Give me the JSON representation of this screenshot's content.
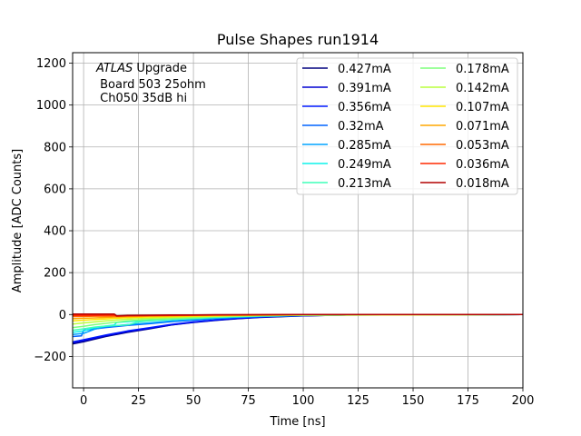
{
  "chart_data": {
    "type": "line",
    "title": "Pulse Shapes run1914",
    "xlabel": "Time [ns]",
    "ylabel": "Amplitude [ADC Counts]",
    "xlim": [
      -5,
      200
    ],
    "ylim": [
      -350,
      1250
    ],
    "xticks": [
      0,
      25,
      50,
      75,
      100,
      125,
      150,
      175,
      200
    ],
    "yticks": [
      -200,
      0,
      200,
      400,
      600,
      800,
      1000,
      1200
    ],
    "xtick_labels": [
      "0",
      "25",
      "50",
      "75",
      "100",
      "125",
      "150",
      "175",
      "200"
    ],
    "ytick_labels": [
      "−200",
      "0",
      "200",
      "400",
      "600",
      "800",
      "1000",
      "1200"
    ],
    "grid": true,
    "legend_location": "upper right",
    "legend_columns": 2,
    "annotation": {
      "atlas": "ATLAS",
      "upgrade": " Upgrade",
      "line2": " Board 503 25ohm",
      "line3": " Ch050 35dB hi"
    },
    "series": [
      {
        "name": "0.427mA",
        "color": "#00007f",
        "x": [
          -5,
          0,
          10,
          20,
          30,
          40,
          50,
          60,
          70,
          80,
          90,
          100,
          110,
          120,
          200
        ],
        "values": [
          -140,
          -130,
          -105,
          -85,
          -68,
          -50,
          -38,
          -28,
          -20,
          -14,
          -10,
          -6,
          -4,
          -2,
          0
        ]
      },
      {
        "name": "0.391mA",
        "color": "#0000d2",
        "x": [
          -5,
          0,
          10,
          20,
          30,
          40,
          50,
          60,
          70,
          80,
          90,
          100,
          110,
          120,
          200
        ],
        "values": [
          -136,
          -126,
          -102,
          -82,
          -66,
          -49,
          -37,
          -27,
          -19,
          -13,
          -9,
          -6,
          -4,
          -2,
          0
        ]
      },
      {
        "name": "0.356mA",
        "color": "#0018ff",
        "x": [
          -5,
          0,
          10,
          20,
          30,
          40,
          50,
          60,
          70,
          80,
          90,
          100,
          110,
          120,
          200
        ],
        "values": [
          -130,
          -120,
          -98,
          -78,
          -63,
          -47,
          -35,
          -26,
          -18,
          -12,
          -8,
          -5,
          -3,
          -2,
          0
        ]
      },
      {
        "name": "0.32mA",
        "color": "#0064ff",
        "x": [
          -5,
          -1,
          0,
          10,
          20,
          30,
          40,
          50,
          60,
          70,
          80,
          100,
          120,
          200
        ],
        "values": [
          -105,
          -102,
          -75,
          -62,
          -52,
          -44,
          -34,
          -27,
          -20,
          -14,
          -10,
          -5,
          -2,
          0
        ]
      },
      {
        "name": "0.285mA",
        "color": "#00a4ff",
        "x": [
          -5,
          0,
          5,
          10,
          20,
          30,
          40,
          50,
          60,
          70,
          80,
          100,
          120,
          200
        ],
        "values": [
          -95,
          -90,
          -70,
          -58,
          -48,
          -40,
          -31,
          -24,
          -18,
          -13,
          -9,
          -4,
          -2,
          0
        ]
      },
      {
        "name": "0.249mA",
        "color": "#0cf4ea",
        "x": [
          -5,
          0,
          5,
          10,
          14,
          15,
          20,
          30,
          40,
          50,
          60,
          70,
          80,
          100,
          200
        ],
        "values": [
          -85,
          -78,
          -62,
          -55,
          -50,
          -38,
          -34,
          -28,
          -22,
          -17,
          -13,
          -9,
          -6,
          -3,
          0
        ]
      },
      {
        "name": "0.213mA",
        "color": "#3dffb9",
        "x": [
          -5,
          0,
          5,
          10,
          20,
          25,
          30,
          40,
          50,
          60,
          70,
          80,
          100,
          200
        ],
        "values": [
          -75,
          -68,
          -60,
          -55,
          -50,
          -35,
          -30,
          -24,
          -19,
          -14,
          -10,
          -7,
          -3,
          0
        ]
      },
      {
        "name": "0.178mA",
        "color": "#7dff7a",
        "x": [
          -5,
          0,
          5,
          10,
          15,
          20,
          30,
          40,
          50,
          60,
          70,
          80,
          100,
          200
        ],
        "values": [
          -62,
          -56,
          -48,
          -42,
          -36,
          -30,
          -24,
          -19,
          -15,
          -11,
          -8,
          -6,
          -3,
          0
        ]
      },
      {
        "name": "0.142mA",
        "color": "#baff3d",
        "x": [
          -5,
          0,
          5,
          10,
          15,
          20,
          30,
          40,
          50,
          60,
          70,
          80,
          100,
          200
        ],
        "values": [
          -45,
          -40,
          -35,
          -30,
          -26,
          -22,
          -18,
          -14,
          -11,
          -8,
          -6,
          -4,
          -2,
          0
        ]
      },
      {
        "name": "0.107mA",
        "color": "#ffe600",
        "x": [
          -5,
          0,
          5,
          10,
          15,
          20,
          30,
          40,
          50,
          60,
          70,
          80,
          100,
          200
        ],
        "values": [
          -30,
          -27,
          -24,
          -21,
          -18,
          -15,
          -12,
          -10,
          -8,
          -6,
          -4,
          -3,
          -1,
          0
        ]
      },
      {
        "name": "0.071mA",
        "color": "#ffa700",
        "x": [
          -5,
          0,
          5,
          10,
          15,
          20,
          30,
          40,
          50,
          60,
          70,
          80,
          100,
          200
        ],
        "values": [
          -20,
          -18,
          -16,
          -14,
          -12,
          -10,
          -8,
          -7,
          -5,
          -4,
          -3,
          -2,
          -1,
          0
        ]
      },
      {
        "name": "0.053mA",
        "color": "#ff6800",
        "x": [
          -5,
          0,
          5,
          10,
          15,
          20,
          30,
          40,
          50,
          60,
          70,
          80,
          100,
          200
        ],
        "values": [
          -10,
          -9,
          -8,
          -8,
          -7,
          -6,
          -5,
          -4,
          -3,
          -2,
          -2,
          -1,
          0,
          0
        ]
      },
      {
        "name": "0.036mA",
        "color": "#ff2900",
        "x": [
          -5,
          0,
          5,
          10,
          14,
          15,
          20,
          30,
          40,
          50,
          60,
          80,
          100,
          200
        ],
        "values": [
          -4,
          -4,
          -4,
          -3,
          -3,
          -8,
          -6,
          -5,
          -4,
          -3,
          -2,
          -1,
          0,
          0
        ]
      },
      {
        "name": "0.018mA",
        "color": "#b20000",
        "x": [
          -5,
          0,
          5,
          10,
          14,
          15,
          20,
          30,
          40,
          50,
          60,
          80,
          100,
          200
        ],
        "values": [
          2,
          2,
          2,
          2,
          2,
          -6,
          -4,
          -3,
          -2,
          -2,
          -1,
          -1,
          0,
          0
        ]
      }
    ]
  }
}
